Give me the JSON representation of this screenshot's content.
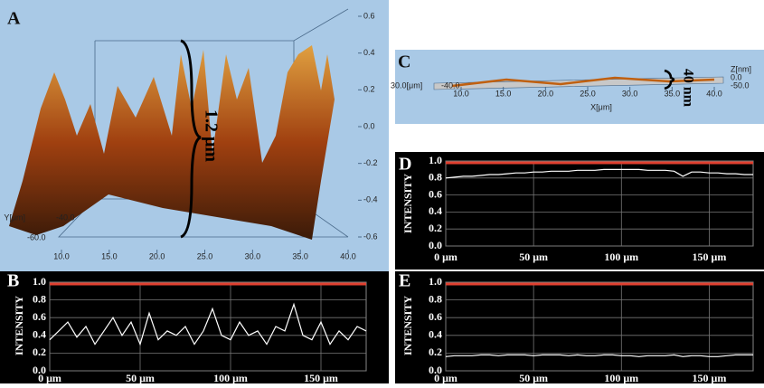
{
  "chart_data": [
    {
      "type": "surface3d",
      "panel_label": "A",
      "annotation": "1.2 μm",
      "ylabel": "Y[μm]",
      "xlim": [
        10,
        40
      ],
      "xticks": [
        {
          "value": 10,
          "label": "10.0"
        },
        {
          "value": 15,
          "label": "15.0"
        },
        {
          "value": 20,
          "label": "20.0"
        },
        {
          "value": 25,
          "label": "25.0"
        },
        {
          "value": 30,
          "label": "30.0"
        },
        {
          "value": 35,
          "label": "35.0"
        },
        {
          "value": 40,
          "label": "40.0"
        }
      ],
      "yticks": [
        {
          "value": -60,
          "label": "-60.0"
        },
        {
          "value": -40,
          "label": "-40.0"
        }
      ],
      "zlim": [
        -0.6,
        0.6
      ],
      "zticks": [
        {
          "value": 0.6,
          "label": "0.6"
        },
        {
          "value": 0.4,
          "label": "0.4"
        },
        {
          "value": 0.2,
          "label": "0.2"
        },
        {
          "value": 0,
          "label": "0.0"
        },
        {
          "value": -0.2,
          "label": "-0.2"
        },
        {
          "value": -0.4,
          "label": "-0.4"
        },
        {
          "value": -0.6,
          "label": "-0.6"
        }
      ]
    },
    {
      "type": "line",
      "panel_label": "B",
      "ylabel": "INTENSITY",
      "color": "#ffffff",
      "x": [
        0,
        5,
        10,
        15,
        20,
        25,
        30,
        35,
        40,
        45,
        50,
        55,
        60,
        65,
        70,
        75,
        80,
        85,
        90,
        95,
        100,
        105,
        110,
        115,
        120,
        125,
        130,
        135,
        140,
        145,
        150,
        155,
        160,
        165,
        170,
        175
      ],
      "values": [
        0.35,
        0.45,
        0.55,
        0.38,
        0.5,
        0.3,
        0.45,
        0.6,
        0.4,
        0.55,
        0.3,
        0.65,
        0.35,
        0.45,
        0.4,
        0.5,
        0.3,
        0.45,
        0.7,
        0.4,
        0.35,
        0.55,
        0.4,
        0.45,
        0.3,
        0.5,
        0.45,
        0.75,
        0.4,
        0.35,
        0.55,
        0.3,
        0.45,
        0.35,
        0.5,
        0.45
      ],
      "xlim": [
        0,
        175
      ],
      "xticks": [
        {
          "value": 0,
          "label": "0 μm"
        },
        {
          "value": 50,
          "label": "50 μm"
        },
        {
          "value": 100,
          "label": "100 μm"
        },
        {
          "value": 150,
          "label": "150 μm"
        }
      ],
      "ylim": [
        0,
        1
      ],
      "yticks": [
        {
          "value": 0,
          "label": "0.0"
        },
        {
          "value": 0.2,
          "label": "0.2"
        },
        {
          "value": 0.4,
          "label": "0.4"
        },
        {
          "value": 0.6,
          "label": "0.6"
        },
        {
          "value": 0.8,
          "label": "0.8"
        },
        {
          "value": 1,
          "label": "1.0"
        }
      ],
      "grid": true
    },
    {
      "type": "surface3d",
      "panel_label": "C",
      "annotation": "40 nm",
      "xlabel": "X[μm]",
      "zlabel": "Z[nm]",
      "xlim": [
        10,
        40
      ],
      "xticks": [
        {
          "value": 10,
          "label": "10.0"
        },
        {
          "value": 15,
          "label": "15.0"
        },
        {
          "value": 20,
          "label": "20.0"
        },
        {
          "value": 25,
          "label": "25.0"
        },
        {
          "value": 30,
          "label": "30.0"
        },
        {
          "value": 35,
          "label": "35.0"
        },
        {
          "value": 40,
          "label": "40.0"
        }
      ],
      "yticks": [
        {
          "value": 30,
          "label": "30.0[μm]"
        },
        {
          "value": -40,
          "label": "-40.0"
        }
      ],
      "zticks": [
        {
          "value": 0,
          "label": "0.0"
        },
        {
          "value": -50,
          "label": "-50.0"
        }
      ]
    },
    {
      "type": "line",
      "panel_label": "D",
      "ylabel": "INTENSITY",
      "color": "#ffffff",
      "x": [
        0,
        5,
        10,
        15,
        20,
        25,
        30,
        35,
        40,
        45,
        50,
        55,
        60,
        65,
        70,
        75,
        80,
        85,
        90,
        95,
        100,
        105,
        110,
        115,
        120,
        125,
        130,
        135,
        140,
        145,
        150,
        155,
        160,
        165,
        170,
        175
      ],
      "values": [
        0.8,
        0.81,
        0.82,
        0.82,
        0.83,
        0.84,
        0.84,
        0.85,
        0.86,
        0.86,
        0.87,
        0.87,
        0.88,
        0.88,
        0.88,
        0.89,
        0.89,
        0.89,
        0.9,
        0.9,
        0.9,
        0.9,
        0.9,
        0.89,
        0.89,
        0.89,
        0.88,
        0.82,
        0.87,
        0.87,
        0.86,
        0.86,
        0.85,
        0.85,
        0.84,
        0.84
      ],
      "xlim": [
        0,
        175
      ],
      "xticks": [
        {
          "value": 0,
          "label": "0 μm"
        },
        {
          "value": 50,
          "label": "50 μm"
        },
        {
          "value": 100,
          "label": "100 μm"
        },
        {
          "value": 150,
          "label": "150 μm"
        }
      ],
      "ylim": [
        0,
        1
      ],
      "yticks": [
        {
          "value": 0,
          "label": "0.0"
        },
        {
          "value": 0.2,
          "label": "0.2"
        },
        {
          "value": 0.4,
          "label": "0.4"
        },
        {
          "value": 0.6,
          "label": "0.6"
        },
        {
          "value": 0.8,
          "label": "0.8"
        },
        {
          "value": 1,
          "label": "1.0"
        }
      ],
      "grid": true
    },
    {
      "type": "line",
      "panel_label": "E",
      "ylabel": "INTENSITY",
      "color": "#ffffff",
      "x": [
        0,
        5,
        10,
        15,
        20,
        25,
        30,
        35,
        40,
        45,
        50,
        55,
        60,
        65,
        70,
        75,
        80,
        85,
        90,
        95,
        100,
        105,
        110,
        115,
        120,
        125,
        130,
        135,
        140,
        145,
        150,
        155,
        160,
        165,
        170,
        175
      ],
      "values": [
        0.16,
        0.17,
        0.17,
        0.17,
        0.18,
        0.18,
        0.17,
        0.18,
        0.18,
        0.18,
        0.17,
        0.18,
        0.18,
        0.18,
        0.17,
        0.18,
        0.17,
        0.17,
        0.18,
        0.18,
        0.17,
        0.17,
        0.16,
        0.17,
        0.17,
        0.17,
        0.18,
        0.16,
        0.17,
        0.17,
        0.16,
        0.16,
        0.17,
        0.18,
        0.18,
        0.18
      ],
      "xlim": [
        0,
        175
      ],
      "xticks": [
        {
          "value": 0,
          "label": "0 μm"
        },
        {
          "value": 50,
          "label": "50 μm"
        },
        {
          "value": 100,
          "label": "100 μm"
        },
        {
          "value": 150,
          "label": "150 μm"
        }
      ],
      "ylim": [
        0,
        1
      ],
      "yticks": [
        {
          "value": 0,
          "label": "0.0"
        },
        {
          "value": 0.2,
          "label": "0.2"
        },
        {
          "value": 0.4,
          "label": "0.4"
        },
        {
          "value": 0.6,
          "label": "0.6"
        },
        {
          "value": 0.8,
          "label": "0.8"
        },
        {
          "value": 1,
          "label": "1.0"
        }
      ],
      "grid": true
    }
  ]
}
